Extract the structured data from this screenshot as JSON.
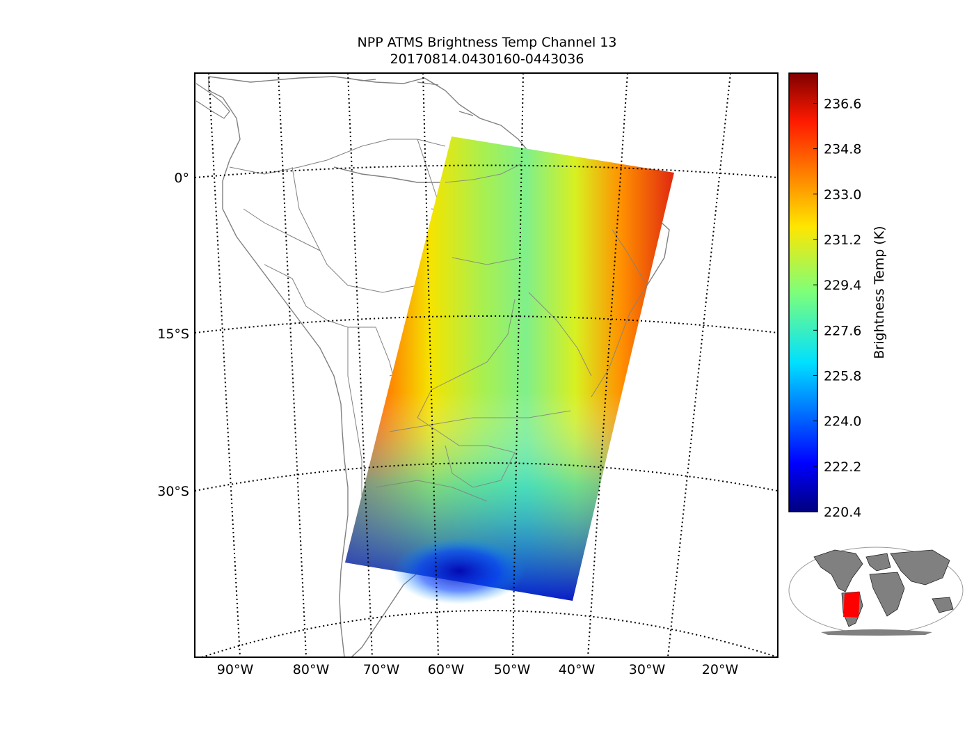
{
  "title": "NPP ATMS Brightness Temp Channel 13",
  "subtitle": "20170814.0430160-0443036",
  "map": {
    "lat_labels": [
      "0°",
      "15°S",
      "30°S"
    ],
    "lon_labels": [
      "90°W",
      "80°W",
      "70°W",
      "60°W",
      "50°W",
      "40°W",
      "30°W",
      "20°W"
    ]
  },
  "colorbar": {
    "label": "Brightness Temp (K)",
    "ticks": [
      "236.6",
      "234.8",
      "233.0",
      "231.2",
      "229.4",
      "227.6",
      "225.8",
      "224.0",
      "222.2",
      "220.4"
    ],
    "range": [
      220.4,
      237.8
    ],
    "colormap": "jet"
  },
  "colors": {
    "coast": "#808080",
    "grid": "#000000",
    "inset_land": "#808080",
    "inset_swath": "#ff0000"
  }
}
